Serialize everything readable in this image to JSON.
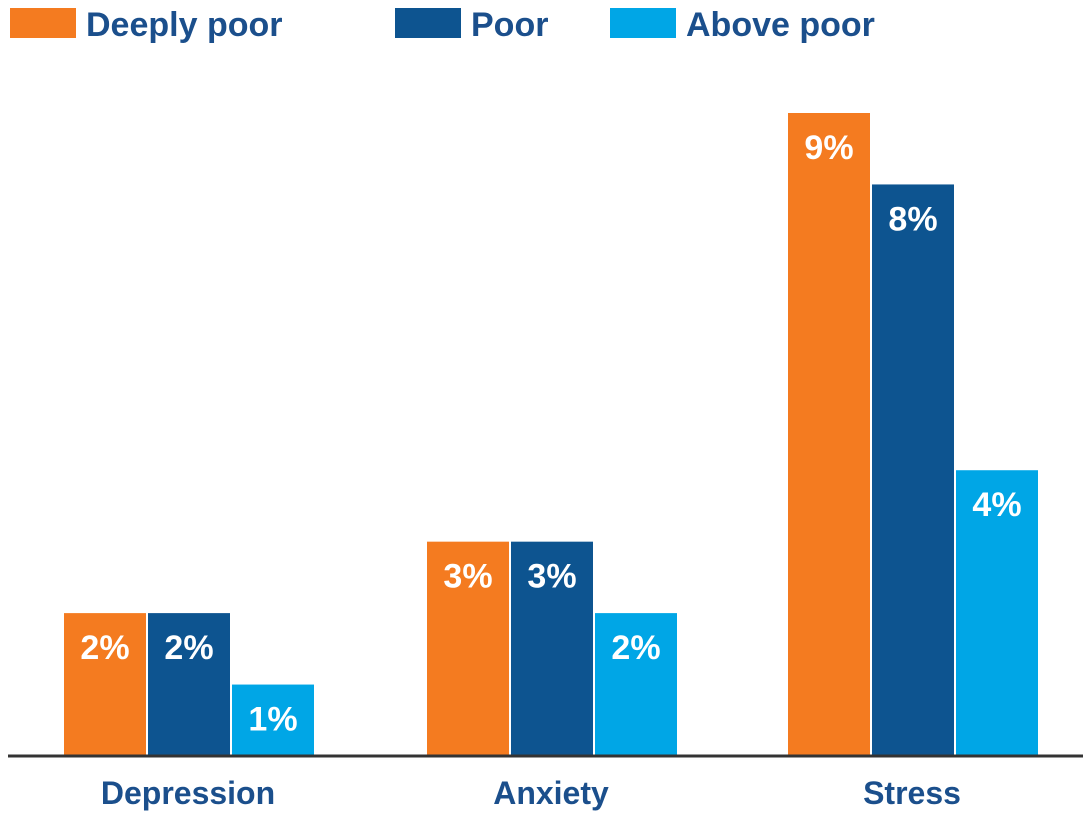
{
  "chart_data": {
    "type": "bar",
    "categories": [
      "Depression",
      "Anxiety",
      "Stress"
    ],
    "series": [
      {
        "name": "Deeply poor",
        "color": "#f47b20",
        "values": [
          2,
          3,
          9
        ]
      },
      {
        "name": "Poor",
        "color": "#0d5490",
        "values": [
          2,
          3,
          8
        ]
      },
      {
        "name": "Above poor",
        "color": "#00a6e6",
        "values": [
          1,
          2,
          4
        ]
      }
    ],
    "value_labels": [
      [
        "2%",
        "3%",
        "9%"
      ],
      [
        "2%",
        "3%",
        "8%"
      ],
      [
        "1%",
        "2%",
        "4%"
      ]
    ],
    "title": "",
    "xlabel": "",
    "ylabel": "",
    "ylim": [
      0,
      9
    ],
    "legend_position": "top",
    "grid": false,
    "axis_color": "#333333",
    "text_color": "#1b4f8c"
  }
}
